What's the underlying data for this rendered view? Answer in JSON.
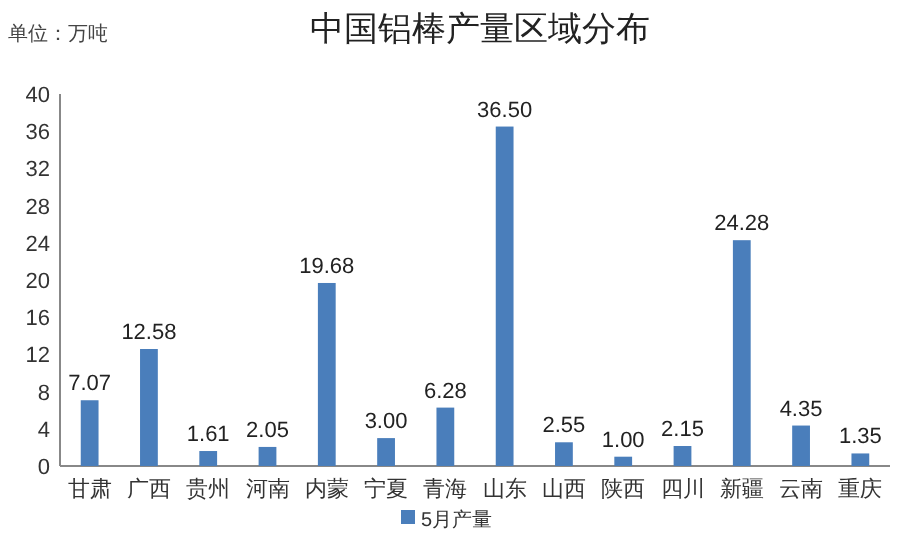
{
  "chart_data": {
    "type": "bar",
    "title": "中国铝棒产量区域分布",
    "ylabel": "单位：万吨",
    "categories": [
      "甘肃",
      "广西",
      "贵州",
      "河南",
      "内蒙",
      "宁夏",
      "青海",
      "山东",
      "山西",
      "陕西",
      "四川",
      "新疆",
      "云南",
      "重庆"
    ],
    "series": [
      {
        "name": "5月产量",
        "color": "#4a7ebb",
        "values": [
          7.07,
          12.58,
          1.61,
          2.05,
          19.68,
          3.0,
          6.28,
          36.5,
          2.55,
          1.0,
          2.15,
          24.28,
          4.35,
          1.35
        ],
        "value_labels": [
          "7.07",
          "12.58",
          "1.61",
          "2.05",
          "19.68",
          "3.00",
          "6.28",
          "36.50",
          "2.55",
          "1.00",
          "2.15",
          "24.28",
          "4.35",
          "1.35"
        ]
      }
    ],
    "ylim": [
      0,
      40
    ],
    "yticks": [
      0,
      4,
      8,
      12,
      16,
      20,
      24,
      28,
      32,
      36,
      40
    ],
    "legend": "bottom"
  }
}
